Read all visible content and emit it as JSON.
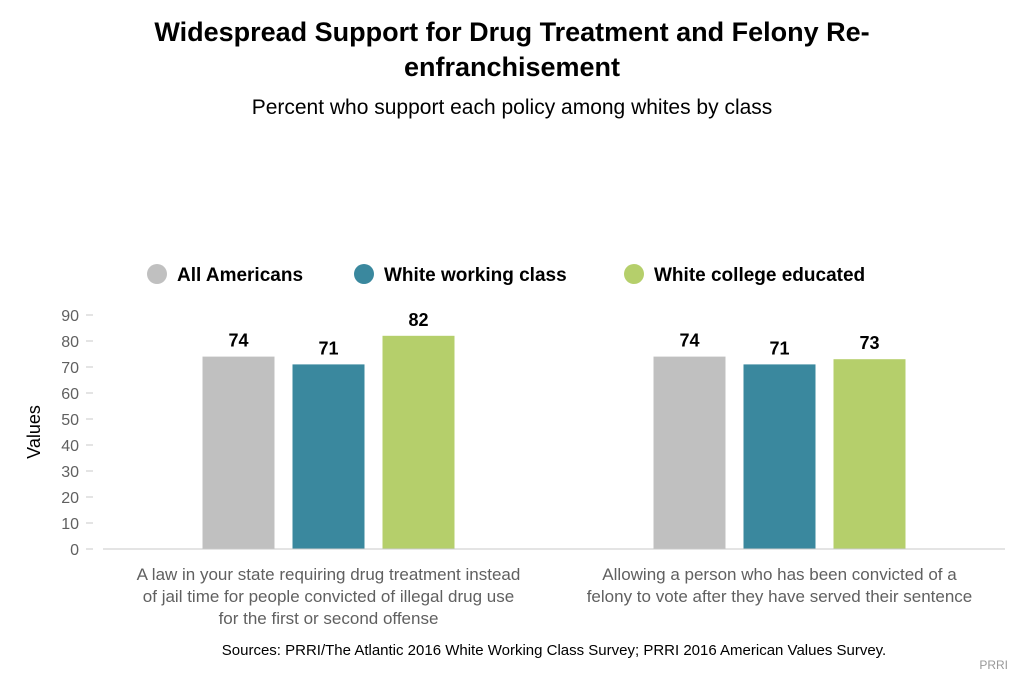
{
  "title_line1": "Widespread Support for Drug Treatment and Felony Re-",
  "title_line2": "enfranchisement",
  "subtitle": "Percent who support each policy among whites by class",
  "source": "Sources: PRRI/The Atlantic 2016 White Working Class Survey; PRRI 2016 American Values Survey.",
  "credit": "PRRI",
  "chart_data": {
    "type": "bar",
    "ylabel": "Values",
    "xlabel": "",
    "ylim": [
      0,
      90
    ],
    "yticks": [
      0,
      10,
      20,
      30,
      40,
      50,
      60,
      70,
      80,
      90
    ],
    "grid": false,
    "legend_position": "top",
    "categories": [
      [
        "A law in your state requiring drug treatment instead",
        "of jail time for people convicted of illegal drug use",
        "for the first or second offense"
      ],
      [
        "Allowing a person who has been convicted of a",
        "felony to vote after they have served their sentence"
      ]
    ],
    "series": [
      {
        "name": "All Americans",
        "color": "#c0c0c0",
        "values": [
          74,
          74
        ]
      },
      {
        "name": "White working class",
        "color": "#3a889e",
        "values": [
          71,
          71
        ]
      },
      {
        "name": "White college educated",
        "color": "#b5cf6b",
        "values": [
          82,
          73
        ]
      }
    ]
  }
}
